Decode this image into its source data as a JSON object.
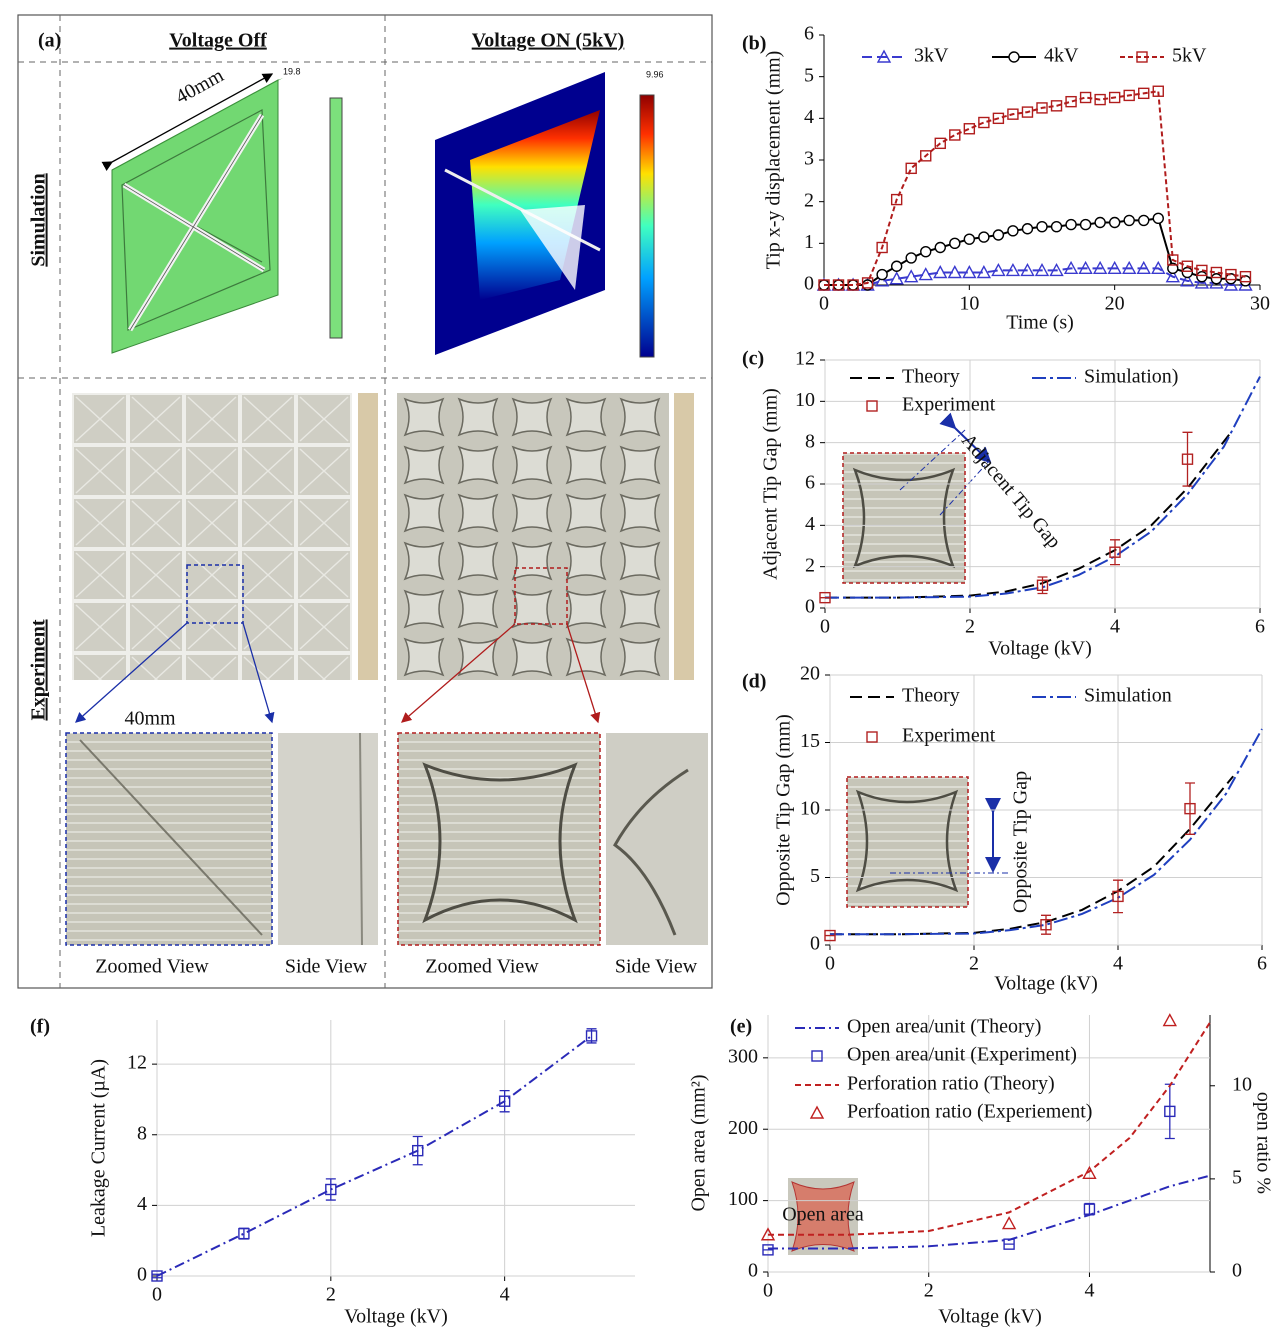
{
  "panel_a": {
    "label": "(a)",
    "columns": [
      "Voltage Off",
      "Voltage ON (5kV)"
    ],
    "rows": [
      "Simulation",
      "Experiment"
    ],
    "dimension_sim": "40mm",
    "dimension_zoom": "40mm",
    "colorbar_max": [
      "9.96",
      "19.8"
    ],
    "captions": [
      "Zoomed View",
      "Side View",
      "Zoomed View",
      "Side View"
    ]
  },
  "chart_data": [
    {
      "type": "line",
      "label": "(b)",
      "xlabel": "Time (s)",
      "ylabel": "Tip x-y displacement (mm)",
      "xlim": [
        0,
        30
      ],
      "ylim": [
        0,
        6
      ],
      "xticks": [
        0,
        10,
        20,
        30
      ],
      "yticks": [
        0,
        1,
        2,
        3,
        4,
        5,
        6
      ],
      "grid": false,
      "x": [
        0,
        1,
        2,
        3,
        4,
        5,
        6,
        7,
        8,
        9,
        10,
        11,
        12,
        13,
        14,
        15,
        16,
        17,
        18,
        19,
        20,
        21,
        22,
        23,
        24,
        25,
        26,
        27,
        28,
        29
      ],
      "series": [
        {
          "name": "3kV",
          "color": "#3a3acf",
          "dash": "10 5",
          "marker": "triangle",
          "values": [
            0,
            0,
            0,
            0,
            0.1,
            0.15,
            0.2,
            0.25,
            0.3,
            0.3,
            0.3,
            0.3,
            0.35,
            0.35,
            0.35,
            0.35,
            0.35,
            0.4,
            0.4,
            0.4,
            0.4,
            0.4,
            0.4,
            0.4,
            0.2,
            0.1,
            0.05,
            0.05,
            0,
            0
          ]
        },
        {
          "name": "4kV",
          "color": "#000000",
          "dash": "",
          "marker": "circle",
          "values": [
            0,
            0,
            0,
            0,
            0.25,
            0.45,
            0.65,
            0.8,
            0.9,
            1.0,
            1.1,
            1.15,
            1.2,
            1.3,
            1.35,
            1.4,
            1.4,
            1.45,
            1.45,
            1.5,
            1.5,
            1.55,
            1.55,
            1.6,
            0.4,
            0.3,
            0.2,
            0.15,
            0.15,
            0.1
          ]
        },
        {
          "name": "5kV",
          "color": "#b01c1c",
          "dash": "5 3",
          "marker": "square",
          "values": [
            0,
            0,
            0,
            0.05,
            0.9,
            2.05,
            2.8,
            3.1,
            3.4,
            3.6,
            3.75,
            3.9,
            4.0,
            4.1,
            4.15,
            4.25,
            4.3,
            4.4,
            4.5,
            4.45,
            4.5,
            4.55,
            4.6,
            4.65,
            0.6,
            0.45,
            0.35,
            0.3,
            0.25,
            0.2
          ]
        }
      ]
    },
    {
      "type": "line",
      "label": "(c)",
      "xlabel": "Voltage (kV)",
      "ylabel": "Adjacent Tip Gap (mm)",
      "annotation": "Adjacent Tip Gap",
      "xlim": [
        0,
        6
      ],
      "ylim": [
        0,
        12
      ],
      "xticks": [
        0,
        2,
        4,
        6
      ],
      "yticks": [
        0,
        2,
        4,
        6,
        8,
        10,
        12
      ],
      "grid": true,
      "series": [
        {
          "name": "Theory",
          "color": "#000000",
          "dash": "12 6",
          "x": [
            0,
            1,
            2,
            2.5,
            3,
            3.5,
            4,
            4.5,
            5,
            5.6
          ],
          "values": [
            0.5,
            0.5,
            0.6,
            0.8,
            1.2,
            1.9,
            2.8,
            4.0,
            5.8,
            8.5
          ]
        },
        {
          "name": "Simulation)",
          "color": "#1f3fbf",
          "dash": "14 4 3 4",
          "x": [
            0,
            1,
            2,
            2.5,
            3,
            3.5,
            4,
            4.5,
            5,
            5.5,
            6
          ],
          "values": [
            0.5,
            0.5,
            0.55,
            0.7,
            1.0,
            1.6,
            2.5,
            3.7,
            5.5,
            7.8,
            11.2
          ]
        },
        {
          "name": "Experiment",
          "color": "#b22222",
          "marker": "square",
          "line": false,
          "x": [
            0,
            3,
            4,
            5
          ],
          "values": [
            0.5,
            1.1,
            2.7,
            7.2
          ],
          "errors": [
            0,
            0.4,
            0.6,
            1.3
          ]
        }
      ]
    },
    {
      "type": "line",
      "label": "(d)",
      "xlabel": "Voltage (kV)",
      "ylabel": "Opposite Tip Gap (mm)",
      "annotation": "Opposite Tip Gap",
      "xlim": [
        0,
        6
      ],
      "ylim": [
        0,
        20
      ],
      "xticks": [
        0,
        2,
        4,
        6
      ],
      "yticks": [
        0,
        5,
        10,
        15,
        20
      ],
      "grid": true,
      "series": [
        {
          "name": "Theory",
          "color": "#000000",
          "dash": "12 6",
          "x": [
            0,
            1,
            2,
            2.5,
            3,
            3.5,
            4,
            4.5,
            5,
            5.6
          ],
          "values": [
            0.8,
            0.8,
            0.9,
            1.2,
            1.7,
            2.6,
            4.0,
            5.8,
            8.6,
            12.5
          ]
        },
        {
          "name": "Simulation",
          "color": "#1f3fbf",
          "dash": "14 4 3 4",
          "x": [
            0,
            1,
            2,
            2.5,
            3,
            3.5,
            4,
            4.5,
            5,
            5.5,
            6
          ],
          "values": [
            0.8,
            0.8,
            0.85,
            1.1,
            1.5,
            2.3,
            3.5,
            5.2,
            7.8,
            11.2,
            16.0
          ]
        },
        {
          "name": "Experiment",
          "color": "#b22222",
          "marker": "square",
          "line": false,
          "x": [
            0,
            3,
            4,
            5
          ],
          "values": [
            0.7,
            1.5,
            3.6,
            10.1
          ],
          "errors": [
            0,
            0.7,
            1.2,
            1.9
          ]
        }
      ]
    },
    {
      "type": "line",
      "label": "(f)",
      "xlabel": "Voltage (kV)",
      "ylabel": "Leakage Current (µA)",
      "xlim": [
        0,
        5.5
      ],
      "ylim": [
        0,
        14.5
      ],
      "xticks": [
        0,
        2,
        4
      ],
      "yticks": [
        0,
        4,
        8,
        12
      ],
      "grid": true,
      "series": [
        {
          "color": "#2a2ab8",
          "dash": "10 4 2 4",
          "marker": "square",
          "x": [
            0,
            1,
            2,
            3,
            4,
            5
          ],
          "values": [
            0,
            2.4,
            4.9,
            7.1,
            9.9,
            13.6
          ],
          "errors": [
            0.1,
            0.3,
            0.6,
            0.8,
            0.6,
            0.4
          ]
        }
      ]
    },
    {
      "type": "line",
      "label": "(e)",
      "xlabel": "Voltage (kV)",
      "ylabel": "Open area (mm²)",
      "y2label": "open ratio %",
      "annotation": "Open area",
      "xlim": [
        0,
        5.5
      ],
      "ylim": [
        0,
        360
      ],
      "y2lim": [
        0,
        13.8
      ],
      "xticks": [
        0,
        2,
        4
      ],
      "yticks": [
        0,
        100,
        200,
        300
      ],
      "y2ticks": [
        0,
        5,
        10
      ],
      "grid": true,
      "series": [
        {
          "name": "Open area/unit (Theory)",
          "color": "#2a2ab8",
          "dash": "10 4 2 4",
          "x": [
            0,
            1,
            2,
            3,
            4,
            4.5,
            5,
            5.5
          ],
          "values": [
            33,
            33,
            36,
            45,
            80,
            100,
            120,
            135
          ]
        },
        {
          "name": "Open area/unit (Experiment)",
          "color": "#2a2ab8",
          "marker": "square",
          "line": false,
          "x": [
            0,
            3,
            4,
            5
          ],
          "values": [
            31,
            39,
            88,
            225
          ],
          "errors": [
            0,
            0,
            8,
            38
          ]
        },
        {
          "name": "Perforation ratio (Theory)",
          "color": "#c02020",
          "dash": "6 4",
          "axis": "y2",
          "x": [
            0,
            1,
            2,
            3,
            4,
            4.5,
            5,
            5.5
          ],
          "values": [
            2.0,
            2.0,
            2.2,
            3.2,
            5.4,
            7.2,
            10.0,
            13.4
          ]
        },
        {
          "name": "Perfoation ratio (Experiement)",
          "color": "#c02020",
          "marker": "triangle",
          "line": false,
          "axis": "y2",
          "x": [
            0,
            3,
            4,
            5
          ],
          "values": [
            2.0,
            2.6,
            5.3,
            13.5
          ]
        }
      ]
    }
  ]
}
